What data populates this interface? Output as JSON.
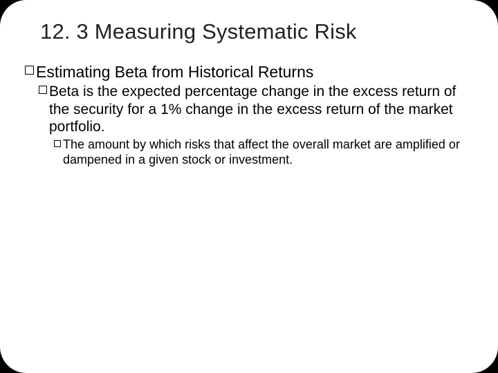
{
  "title": "12. 3 Measuring Systematic Risk",
  "level1": {
    "text": "Estimating Beta from Historical Returns"
  },
  "level2": {
    "text": "Beta is the expected percentage change in the excess return of the security for a 1% change in the excess return of the market portfolio."
  },
  "level3": {
    "text": "The amount by which risks that affect the overall market are amplified or dampened in a given stock or investment."
  },
  "colors": {
    "background": "#ffffff",
    "page_behind": "#000000",
    "text": "#000000",
    "title": "#222222"
  }
}
